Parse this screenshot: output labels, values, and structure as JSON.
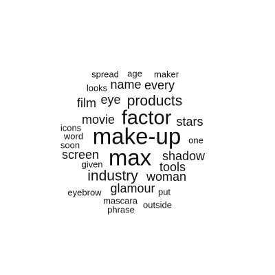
{
  "word_cloud": {
    "words": [
      {
        "id": "spread",
        "text": "spread"
      },
      {
        "id": "age",
        "text": "age"
      },
      {
        "id": "maker",
        "text": "maker"
      },
      {
        "id": "looks",
        "text": "looks"
      },
      {
        "id": "name",
        "text": "name"
      },
      {
        "id": "every",
        "text": "every"
      },
      {
        "id": "film",
        "text": "film"
      },
      {
        "id": "eye",
        "text": "eye"
      },
      {
        "id": "products",
        "text": "products"
      },
      {
        "id": "movie",
        "text": "movie"
      },
      {
        "id": "factor",
        "text": "factor"
      },
      {
        "id": "stars",
        "text": "stars"
      },
      {
        "id": "icons",
        "text": "icons"
      },
      {
        "id": "word",
        "text": "word"
      },
      {
        "id": "make-up",
        "text": "make-up"
      },
      {
        "id": "soon",
        "text": "soon"
      },
      {
        "id": "one",
        "text": "one"
      },
      {
        "id": "screen",
        "text": "screen"
      },
      {
        "id": "max",
        "text": "max"
      },
      {
        "id": "shadow",
        "text": "shadow"
      },
      {
        "id": "given",
        "text": "given"
      },
      {
        "id": "tools",
        "text": "tools"
      },
      {
        "id": "industry",
        "text": "industry"
      },
      {
        "id": "woman",
        "text": "woman"
      },
      {
        "id": "glamour",
        "text": "glamour"
      },
      {
        "id": "eyebrow",
        "text": "eyebrow"
      },
      {
        "id": "put",
        "text": "put"
      },
      {
        "id": "mascara",
        "text": "mascara"
      },
      {
        "id": "outside",
        "text": "outside"
      },
      {
        "id": "phrase",
        "text": "phrase"
      }
    ]
  }
}
